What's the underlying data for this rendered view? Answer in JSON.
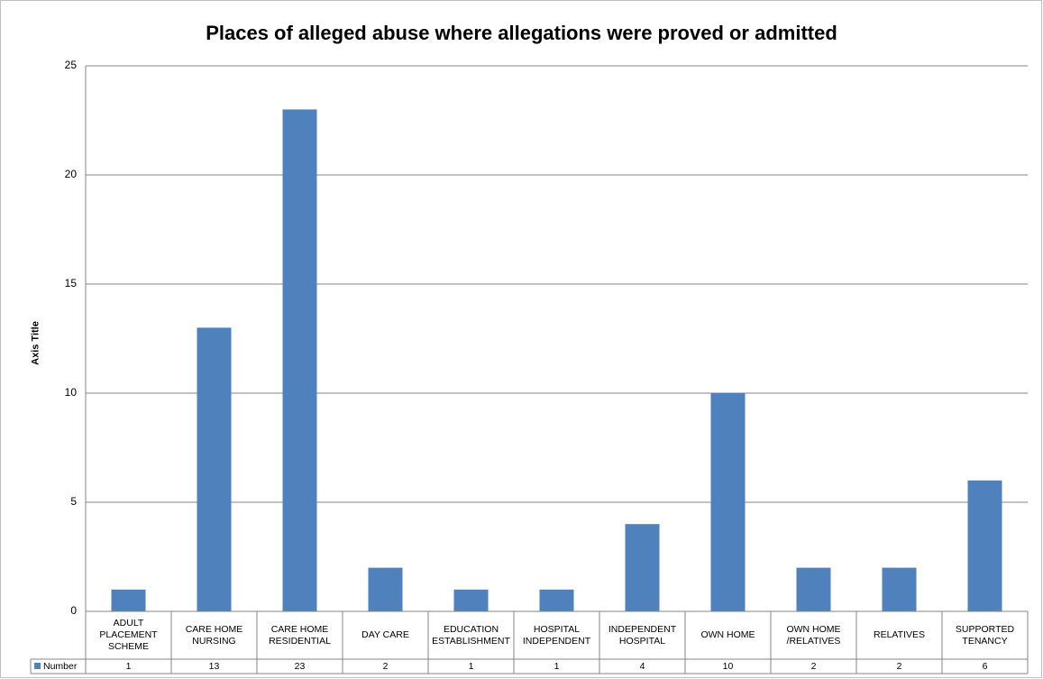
{
  "chart_data": {
    "type": "bar",
    "title": "Places of alleged abuse where allegations were proved or admitted",
    "y_label": "Axis Title",
    "categories": [
      "ADULT PLACEMENT SCHEME",
      "CARE HOME NURSING",
      "CARE HOME RESIDENTIAL",
      "DAY CARE",
      "EDUCATION ESTABLISHMENT",
      "HOSPITAL INDEPENDENT",
      "INDEPENDENT HOSPITAL",
      "OWN HOME",
      "OWN HOME /RELATIVES",
      "RELATIVES",
      "SUPPORTED TENANCY"
    ],
    "series": [
      {
        "name": "Number",
        "color": "#4f81bd",
        "values": [
          1,
          13,
          23,
          2,
          1,
          1,
          4,
          10,
          2,
          2,
          6
        ]
      }
    ],
    "ylim": [
      0,
      25
    ],
    "yticks": [
      0,
      5,
      10,
      15,
      20,
      25
    ],
    "grid": true,
    "data_table": true
  }
}
